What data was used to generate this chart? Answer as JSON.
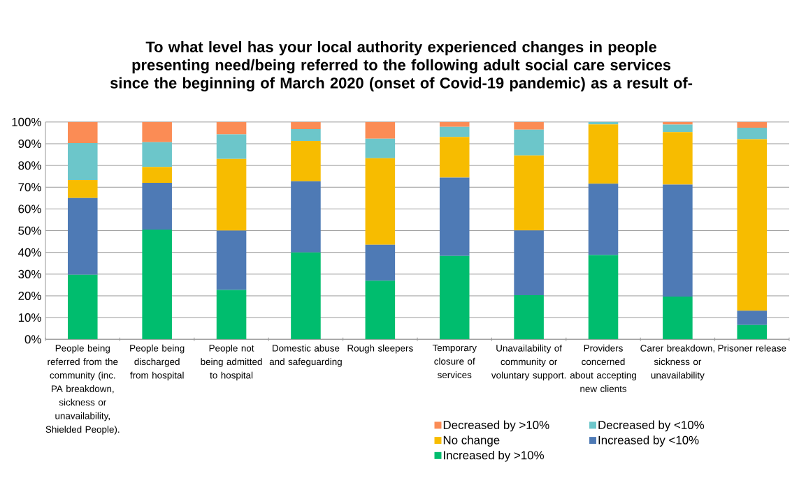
{
  "chart_data": {
    "type": "bar",
    "stacked": true,
    "title": "To what level has your local authority experienced changes in people presenting need/being referred to the following adult social care services since the beginning of March 2020 (onset of Covid-19 pandemic) as a result of-",
    "categories": [
      "People being referred from the community (inc. PA breakdown, sickness or unavailability, Shielded People).",
      "People being discharged from hospital",
      "People not being admitted to hospital",
      "Domestic abuse and safeguarding",
      "Rough sleepers",
      "Temporary closure of services",
      "Unavailability of community or voluntary support.",
      "Providers concerned about accepting new clients",
      "Carer breakdown, sickness or unavailability",
      "Prisoner release"
    ],
    "series": [
      {
        "name": "Increased by >10%",
        "color": "#00bd6e",
        "values": [
          29.7,
          50.5,
          22.7,
          40,
          27,
          38.4,
          20.3,
          38.8,
          19.7,
          6.6
        ]
      },
      {
        "name": "Increased by <10%",
        "color": "#4e7ab5",
        "values": [
          35.3,
          21.5,
          27.3,
          32.7,
          16.5,
          36,
          29.8,
          32.8,
          51.5,
          6.6
        ]
      },
      {
        "name": "No change",
        "color": "#f7bc00",
        "values": [
          8.3,
          7.3,
          33,
          18.6,
          39.8,
          18.7,
          34.5,
          27.3,
          24.2,
          78.9
        ]
      },
      {
        "name": "Decreased by <10%",
        "color": "#6cc6ca",
        "values": [
          17,
          11.4,
          11.3,
          5.4,
          9,
          4.7,
          11.9,
          1.1,
          3.4,
          5.3
        ]
      },
      {
        "name": "Decreased by >10%",
        "color": "#fb8c55",
        "values": [
          9.7,
          9.3,
          5.7,
          3.3,
          7.7,
          2.2,
          3.5,
          0,
          1.2,
          2.6
        ]
      }
    ],
    "ylim": [
      0,
      100
    ],
    "yticks": [
      {
        "value": 0,
        "label": "0%"
      },
      {
        "value": 10,
        "label": "10%"
      },
      {
        "value": 20,
        "label": "20%"
      },
      {
        "value": 30,
        "label": "30%"
      },
      {
        "value": 40,
        "label": "40%"
      },
      {
        "value": 50,
        "label": "50%"
      },
      {
        "value": 60,
        "label": "60%"
      },
      {
        "value": 70,
        "label": "70%"
      },
      {
        "value": 80,
        "label": "80%"
      },
      {
        "value": 90,
        "label": "90%"
      },
      {
        "value": 100,
        "label": "100%"
      }
    ],
    "grid": "y",
    "legend": "bottom"
  }
}
